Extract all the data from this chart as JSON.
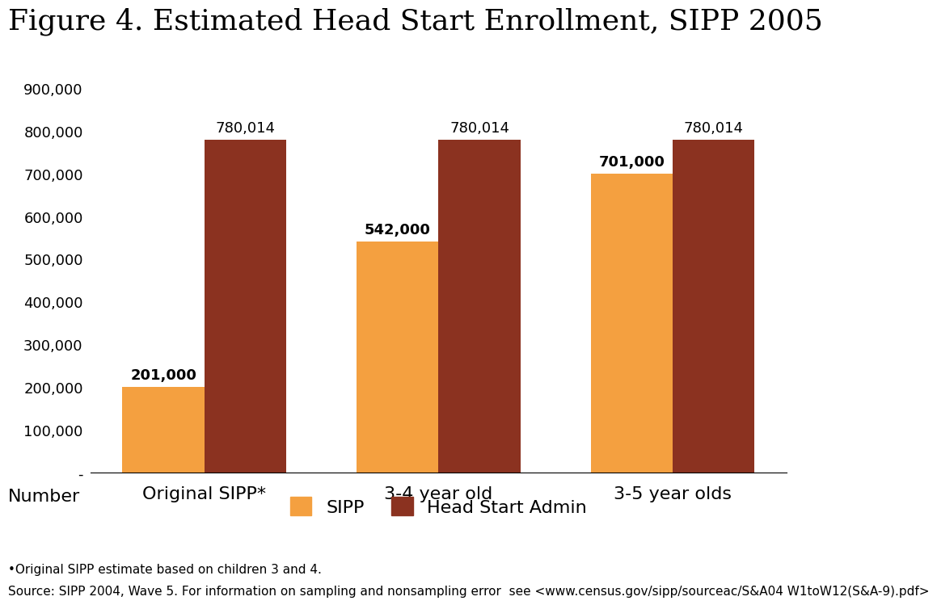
{
  "title": "Figure 4. Estimated Head Start Enrollment, SIPP 2005",
  "categories": [
    "Original SIPP*",
    "3-4 year old",
    "3-5 year olds"
  ],
  "sipp_values": [
    201000,
    542000,
    701000
  ],
  "admin_values": [
    780014,
    780014,
    780014
  ],
  "sipp_labels": [
    "201,000",
    "542,000",
    "701,000"
  ],
  "admin_labels": [
    "780,014",
    "780,014",
    "780,014"
  ],
  "sipp_color": "#F4A040",
  "admin_color": "#8B3220",
  "ylim": [
    0,
    900000
  ],
  "yticks": [
    0,
    100000,
    200000,
    300000,
    400000,
    500000,
    600000,
    700000,
    800000,
    900000
  ],
  "ytick_labels": [
    "-",
    "100,000",
    "200,000",
    "300,000",
    "400,000",
    "500,000",
    "600,000",
    "700,000",
    "800,000",
    "900,000"
  ],
  "ylabel": "Number",
  "legend_labels": [
    "SIPP",
    "Head Start Admin"
  ],
  "footnote1": "•Original SIPP estimate based on children 3 and 4.",
  "footnote2": "Source: SIPP 2004, Wave 5. For information on sampling and nonsampling error  see <www.census.gov/sipp/sourceac/S&A04 W1toW12(S&A-9).pdf>",
  "bar_width": 0.35,
  "title_fontsize": 26,
  "axis_fontsize": 16,
  "label_fontsize": 13,
  "tick_fontsize": 13,
  "legend_fontsize": 16,
  "footnote_fontsize": 11
}
